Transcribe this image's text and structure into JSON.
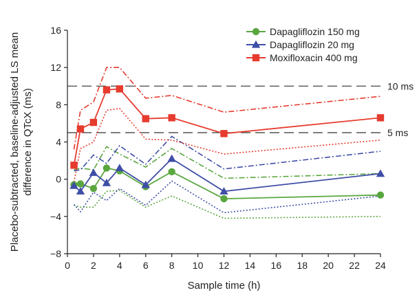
{
  "chart_data": {
    "type": "line",
    "title": "",
    "xlabel": "Sample time (h)",
    "ylabel": "Placebo-subtracted, baseline-adjusted LS mean difference in QTcX (ms)",
    "ylabel_lines": [
      "Placebo-subtracted, baseline-adjusted LS mean",
      "difference in QTcX (ms)"
    ],
    "xlim": [
      0,
      24
    ],
    "ylim": [
      -8,
      16
    ],
    "xticks": [
      0,
      2,
      4,
      6,
      8,
      10,
      12,
      14,
      16,
      18,
      20,
      22,
      24
    ],
    "yticks": [
      -8,
      -4,
      0,
      4,
      8,
      12,
      16
    ],
    "grid": false,
    "legend_position": "top-right",
    "reference_lines": [
      {
        "y": 10,
        "label": "10 ms"
      },
      {
        "y": 5,
        "label": "5 ms"
      }
    ],
    "series": [
      {
        "name": "Dapagliflozin 150 mg",
        "color": "#5aa63f",
        "marker": "circle",
        "x": [
          0.5,
          1,
          2,
          3,
          4,
          6,
          8,
          12,
          24
        ],
        "values": [
          -0.6,
          -0.5,
          -1.0,
          1.2,
          0.9,
          -0.8,
          0.8,
          -2.1,
          -1.7
        ],
        "upper": [
          1.0,
          1.2,
          1.0,
          3.5,
          2.7,
          1.3,
          3.3,
          0.1,
          0.6
        ],
        "lower": [
          -2.8,
          -3.0,
          -3.0,
          -1.3,
          -1.2,
          -3.0,
          -1.8,
          -4.2,
          -4.0
        ]
      },
      {
        "name": "Dapagliflozin 20 mg",
        "color": "#3f4ea6",
        "marker": "triangle",
        "x": [
          0.5,
          1,
          2,
          3,
          4,
          6,
          8,
          12,
          24
        ],
        "values": [
          -0.7,
          -1.3,
          0.7,
          -0.4,
          1.2,
          -0.6,
          2.2,
          -1.3,
          0.6
        ],
        "upper": [
          0.9,
          1.0,
          2.6,
          1.7,
          3.6,
          1.6,
          4.6,
          1.1,
          3.0
        ],
        "lower": [
          -2.7,
          -3.5,
          -1.4,
          -2.3,
          -1.0,
          -2.8,
          -0.2,
          -3.6,
          -1.8
        ]
      },
      {
        "name": "Moxifloxacin 400 mg",
        "color": "#e63b2e",
        "marker": "square",
        "x": [
          0.5,
          1,
          2,
          3,
          4,
          6,
          8,
          12,
          24
        ],
        "values": [
          1.5,
          5.4,
          6.1,
          9.6,
          9.7,
          6.5,
          6.6,
          4.9,
          6.6
        ],
        "upper": [
          3.2,
          7.4,
          8.3,
          12.0,
          12.0,
          8.7,
          9.0,
          7.2,
          8.9
        ],
        "lower": [
          -0.3,
          3.3,
          4.0,
          7.4,
          7.6,
          4.3,
          4.2,
          2.7,
          4.2
        ]
      }
    ]
  }
}
